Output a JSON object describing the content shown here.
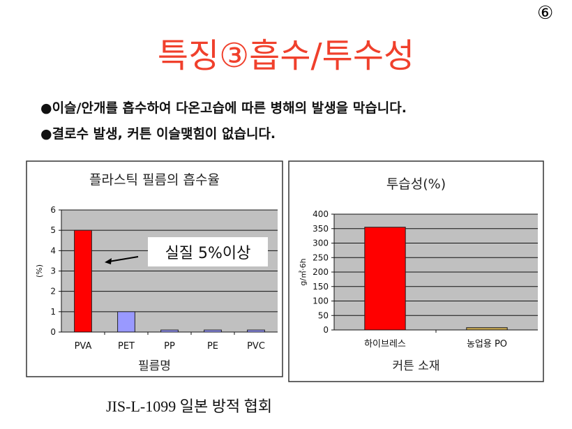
{
  "page_number": "⑥",
  "title": "특징③흡수/투수성",
  "bullets": [
    "●이슬/안개를 흡수하여 다온고습에 따른 병해의 발생을 막습니다.",
    "●결로수 발생, 커튼 이슬맺힘이 없습니다."
  ],
  "footer": "JIS-L-1099 일본 방적 협회",
  "chart_data": [
    {
      "type": "bar",
      "title": "플라스틱 필름의 흡수율",
      "xlabel": "필름명",
      "ylabel": "(%)",
      "categories": [
        "PVA",
        "PET",
        "PP",
        "PE",
        "PVC"
      ],
      "values": [
        5,
        1,
        0.1,
        0.1,
        0.1
      ],
      "colors": [
        "#ff0000",
        "#9999ff",
        "#9999ff",
        "#9999ff",
        "#9999ff"
      ],
      "ylim": [
        0,
        6
      ],
      "yticks": [
        0,
        1,
        2,
        3,
        4,
        5,
        6
      ],
      "grid": true,
      "plot_background": "#c0c0c0",
      "annotation": "실질 5%이상"
    },
    {
      "type": "bar",
      "title": "투습성(%)",
      "xlabel": "커튼 소재",
      "ylabel": "g/㎡·6h",
      "categories": [
        "하이브레스",
        "농업용 PO"
      ],
      "values": [
        355,
        8
      ],
      "colors": [
        "#ff0000",
        "#c8a850"
      ],
      "ylim": [
        0,
        400
      ],
      "yticks": [
        0,
        50,
        100,
        150,
        200,
        250,
        300,
        350,
        400
      ],
      "grid": true,
      "plot_background": "#c0c0c0"
    }
  ]
}
